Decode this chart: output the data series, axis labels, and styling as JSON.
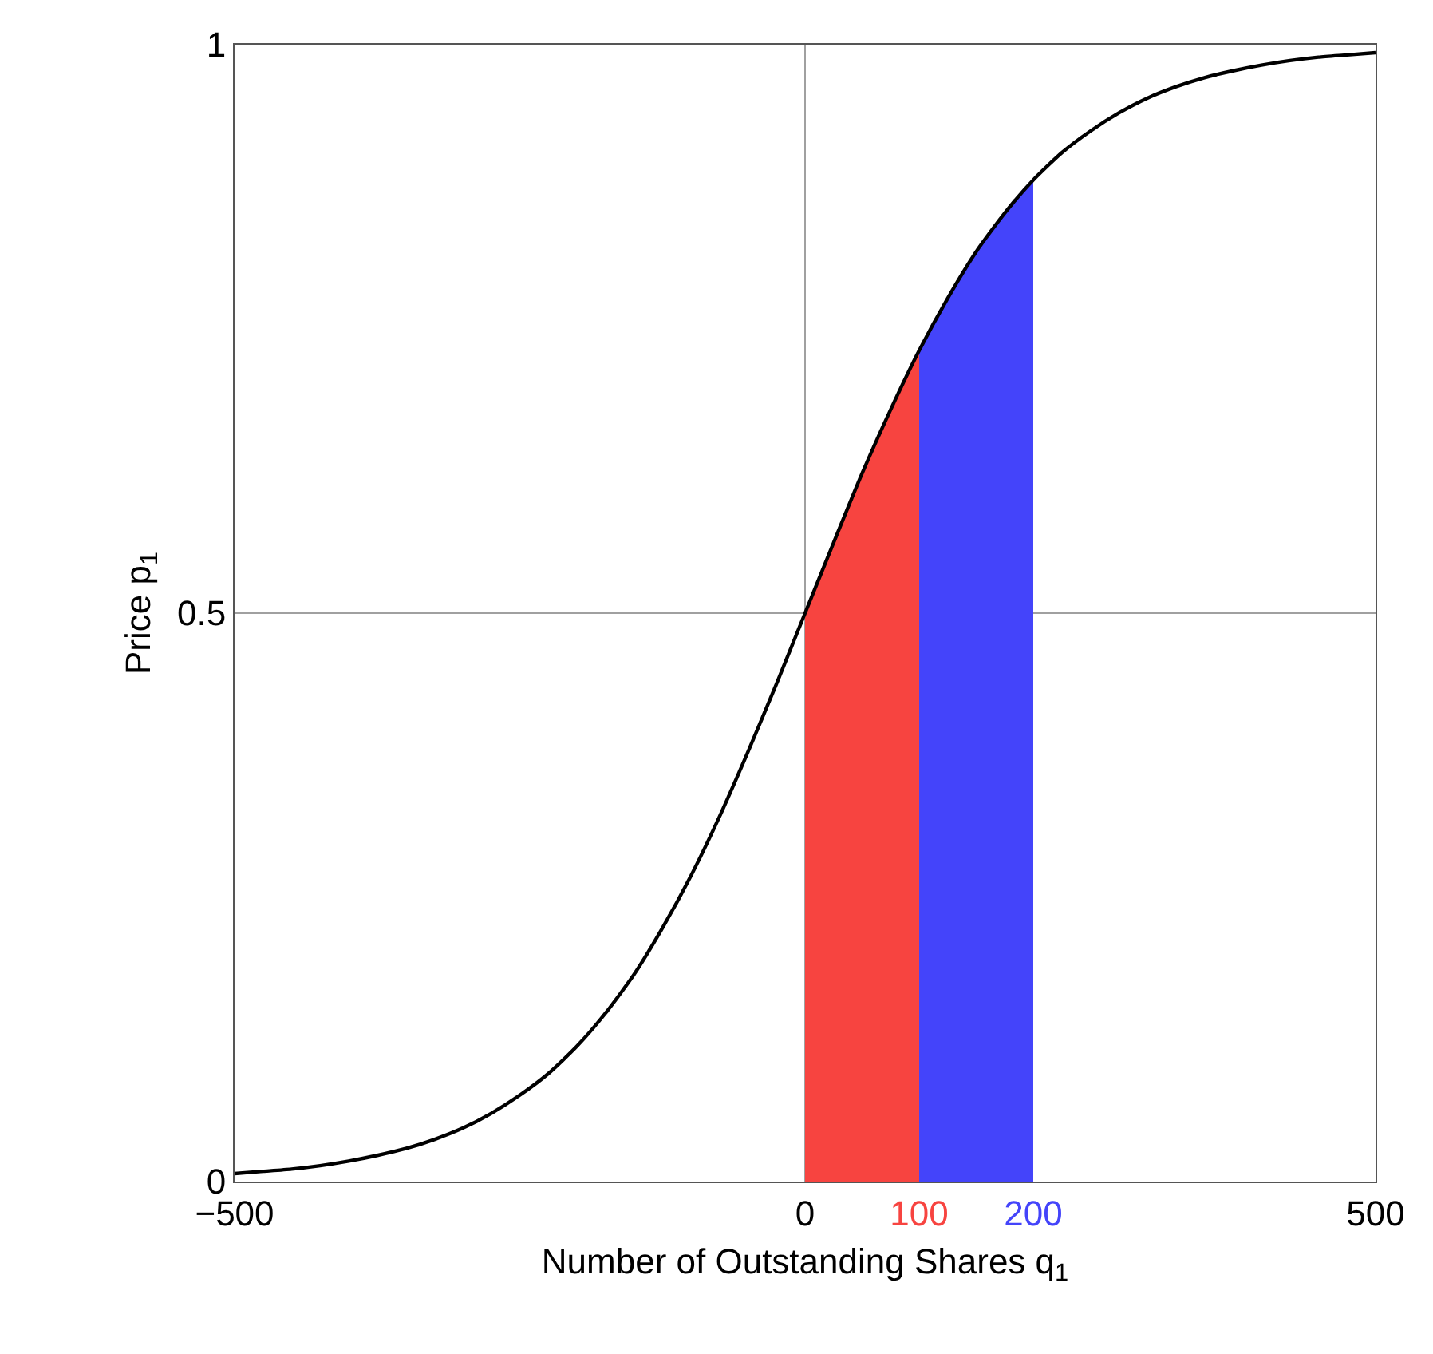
{
  "chart_data": {
    "type": "line",
    "xlabel": "Number of Outstanding Shares q$_{1}$",
    "ylabel": "Price p$_{1}$",
    "series": [
      {
        "type": "area",
        "color": "#f74440",
        "x": [
          0,
          25,
          50,
          75,
          100
        ],
        "values": [
          0.5,
          0.562,
          0.623,
          0.679,
          0.731
        ]
      },
      {
        "type": "area",
        "color": "#4444fa",
        "x": [
          100,
          125,
          150,
          175,
          200
        ],
        "values": [
          0.731,
          0.777,
          0.818,
          0.852,
          0.881
        ]
      },
      {
        "color": "#000000",
        "x": [
          -500,
          -475,
          -450,
          -425,
          -400,
          -375,
          -350,
          -325,
          -300,
          -275,
          -250,
          -225,
          -200,
          -175,
          -150,
          -125,
          -100,
          -75,
          -50,
          -25,
          0,
          25,
          50,
          75,
          100,
          125,
          150,
          175,
          200,
          225,
          250,
          275,
          300,
          325,
          350,
          375,
          400,
          425,
          450,
          475,
          500
        ],
        "values": [
          0.007,
          0.009,
          0.011,
          0.014,
          0.018,
          0.023,
          0.029,
          0.037,
          0.047,
          0.06,
          0.076,
          0.095,
          0.119,
          0.148,
          0.182,
          0.223,
          0.269,
          0.321,
          0.378,
          0.438,
          0.5,
          0.562,
          0.623,
          0.679,
          0.731,
          0.777,
          0.818,
          0.852,
          0.881,
          0.905,
          0.924,
          0.94,
          0.953,
          0.963,
          0.971,
          0.977,
          0.982,
          0.986,
          0.989,
          0.991,
          0.993
        ]
      }
    ],
    "xlim": [
      -500,
      500
    ],
    "xticks": [
      {
        "value": -500,
        "label": "−500"
      },
      0,
      100,
      200,
      500
    ],
    "ylim": [
      0,
      1
    ],
    "yticks": [
      0,
      0.5,
      1
    ],
    "ref_lines": [
      {
        "axis": "x",
        "value": 0,
        "color": "#a0a0a0"
      },
      {
        "axis": "y",
        "value": 0.5,
        "color": "#a0a0a0"
      }
    ],
    "grid": false,
    "marker": "none",
    "line_style": "solid"
  }
}
